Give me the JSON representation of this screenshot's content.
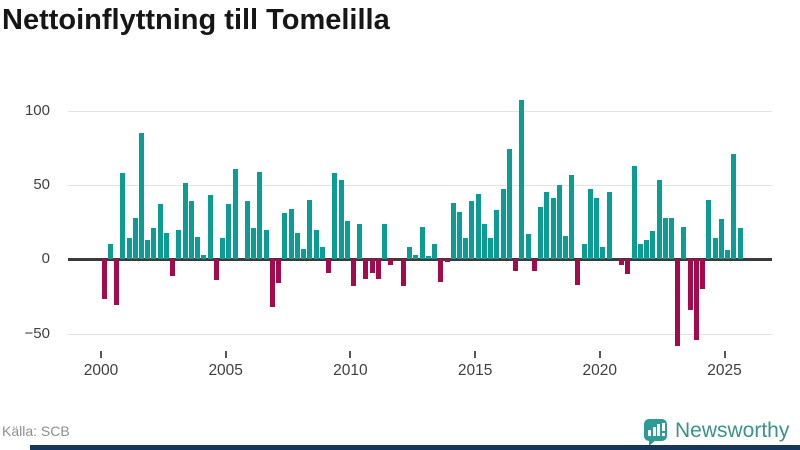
{
  "title": "Nettoinflyttning till Tomelilla",
  "source": {
    "label": "Källa: SCB"
  },
  "branding": {
    "name": "Newsworthy",
    "icon": "bar-chart-bubble-icon"
  },
  "colors": {
    "positive_bar": "#0b9d94",
    "negative_bar": "#a30b4d",
    "gridline": "#e4e4e4",
    "zero_line": "#3b3b3b",
    "axis_text": "#3f3f3f",
    "brand_teal": "#2e9a94",
    "brand_navy": "#17365c"
  },
  "chart_data": {
    "type": "bar",
    "title": "Nettoinflyttning till Tomelilla",
    "frequency": "quarterly",
    "start_period": "2000Q1",
    "end_period": "2025Q3",
    "x_tick_labels": [
      "2000",
      "2005",
      "2010",
      "2015",
      "2020",
      "2025"
    ],
    "y_ticks": [
      100,
      50,
      0,
      -50
    ],
    "ylim": [
      -68,
      114
    ],
    "grid": true,
    "legend": false,
    "values": [
      -27,
      10,
      -31,
      58,
      14,
      28,
      85,
      13,
      21,
      37,
      18,
      -11,
      20,
      51,
      39,
      15,
      3,
      43,
      -14,
      14,
      37,
      61,
      0,
      39,
      21,
      59,
      20,
      -32,
      -16,
      31,
      34,
      18,
      7,
      40,
      20,
      8,
      -9,
      58,
      53,
      26,
      -18,
      24,
      -13,
      -9,
      -13,
      24,
      -4,
      0,
      -18,
      8,
      3,
      22,
      2,
      10,
      -15,
      -2,
      38,
      32,
      14,
      39,
      44,
      24,
      14,
      33,
      47,
      74,
      -8,
      107,
      17,
      -8,
      35,
      45,
      41,
      50,
      16,
      57,
      -17,
      10,
      47,
      41,
      8,
      45,
      0,
      -4,
      -10,
      63,
      10,
      13,
      19,
      53,
      28,
      28,
      -58,
      22,
      -34,
      -54,
      -20,
      40,
      14,
      27,
      6,
      71,
      21
    ]
  }
}
